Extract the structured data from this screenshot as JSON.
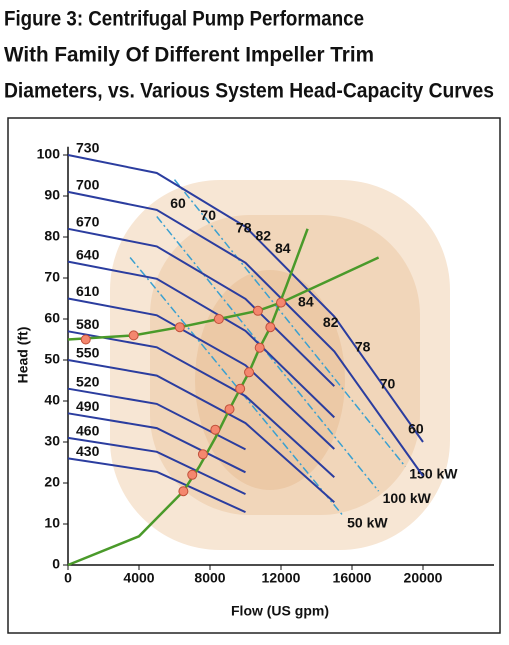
{
  "chart_data": {
    "type": "line",
    "title_lines": [
      "Figure 3: Centrifugal Pump Performance",
      "With Family Of Different Impeller Trim",
      "Diameters, vs. Various System Head-Capacity Curves"
    ],
    "x_label": "Flow (US gpm)",
    "y_label": "Head (ft)",
    "xlim": [
      0,
      24000
    ],
    "ylim": [
      0,
      102
    ],
    "xticks": [
      0,
      4000,
      8000,
      12000,
      16000,
      20000
    ],
    "yticks": [
      0,
      10,
      20,
      30,
      40,
      50,
      60,
      70,
      80,
      90,
      100
    ],
    "x": [
      0,
      5000,
      10000,
      15000,
      20000
    ],
    "series": [
      {
        "name": "730",
        "color": "#2b3d9f",
        "values": [
          100,
          95.6,
          82.5,
          60.6,
          30.0
        ]
      },
      {
        "name": "700",
        "color": "#2b3d9f",
        "values": [
          91,
          86.6,
          73.7,
          52.1,
          21.7
        ]
      },
      {
        "name": "670",
        "color": "#2b3d9f",
        "values": [
          82,
          77.7,
          64.9,
          43.6,
          null
        ]
      },
      {
        "name": "640",
        "color": "#2b3d9f",
        "values": [
          74,
          69.8,
          57.1,
          36.0,
          null
        ]
      },
      {
        "name": "610",
        "color": "#2b3d9f",
        "values": [
          65,
          60.9,
          48.7,
          28.3,
          null
        ]
      },
      {
        "name": "580",
        "color": "#2b3d9f",
        "values": [
          57,
          53.1,
          41.2,
          21.4,
          null
        ]
      },
      {
        "name": "550",
        "color": "#2b3d9f",
        "values": [
          50,
          46.2,
          34.6,
          15.3,
          null
        ]
      },
      {
        "name": "520",
        "color": "#2b3d9f",
        "values": [
          43,
          39.3,
          28.2,
          null,
          null
        ]
      },
      {
        "name": "490",
        "color": "#2b3d9f",
        "values": [
          37,
          33.4,
          22.6,
          null,
          null
        ]
      },
      {
        "name": "460",
        "color": "#2b3d9f",
        "values": [
          31,
          27.6,
          17.3,
          null,
          null
        ]
      },
      {
        "name": "430",
        "color": "#2b3d9f",
        "values": [
          26,
          22.7,
          12.9,
          null,
          null
        ]
      }
    ],
    "system_curves": [
      {
        "color": "#4a9a2a",
        "x": [
          0,
          4000,
          6500,
          7400,
          8300,
          9100,
          9700,
          10200,
          10800,
          11400,
          12300,
          13500
        ],
        "values": [
          0,
          7,
          18,
          24,
          31,
          38,
          43,
          47,
          53,
          58,
          68,
          82
        ]
      },
      {
        "color": "#4a9a2a",
        "x": [
          0,
          3700,
          6300,
          8500,
          10700,
          12000,
          14500,
          17500
        ],
        "values": [
          55,
          56,
          58,
          60,
          62,
          64,
          69,
          75
        ]
      }
    ],
    "power_lines": [
      {
        "name": "50 kW",
        "color": "#3aa0d0",
        "x": [
          3500,
          15500
        ],
        "values": [
          75,
          12
        ]
      },
      {
        "name": "100 kW",
        "color": "#3aa0d0",
        "x": [
          5000,
          17500
        ],
        "values": [
          85,
          18
        ]
      },
      {
        "name": "150 kW",
        "color": "#3aa0d0",
        "x": [
          6000,
          19000
        ],
        "values": [
          94,
          24
        ]
      }
    ],
    "points": {
      "color": "#f4876e",
      "x": [
        1000,
        3700,
        6300,
        8500,
        10700,
        12000,
        11400,
        10800,
        10200,
        9700,
        9100,
        8300,
        7600,
        7000,
        6500
      ],
      "values": [
        55,
        56,
        58,
        60,
        62,
        64,
        58,
        53,
        47,
        43,
        38,
        33,
        27,
        22,
        18
      ]
    },
    "annotations": [
      {
        "text": "60",
        "x": 6200,
        "y": 88
      },
      {
        "text": "70",
        "x": 7900,
        "y": 85
      },
      {
        "text": "78",
        "x": 9900,
        "y": 82
      },
      {
        "text": "82",
        "x": 11000,
        "y": 80
      },
      {
        "text": "84",
        "x": 12100,
        "y": 77
      },
      {
        "text": "84",
        "x": 13400,
        "y": 64
      },
      {
        "text": "82",
        "x": 14800,
        "y": 59
      },
      {
        "text": "78",
        "x": 16600,
        "y": 53
      },
      {
        "text": "70",
        "x": 18000,
        "y": 44
      },
      {
        "text": "60",
        "x": 19600,
        "y": 33
      }
    ]
  }
}
